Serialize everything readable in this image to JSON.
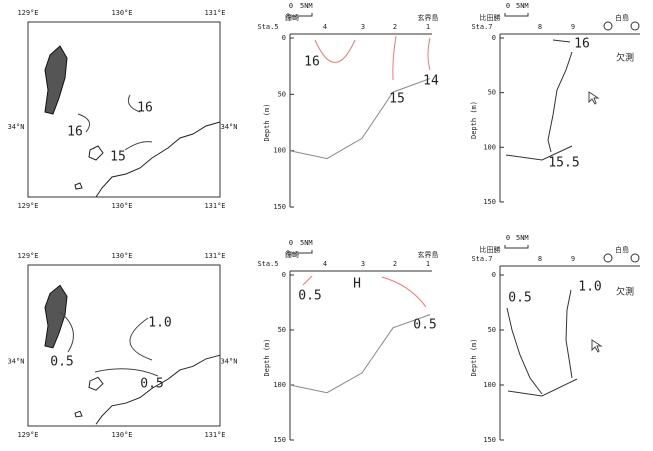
{
  "maps": [
    {
      "lon_top": [
        "129°E",
        "130°E",
        "131°E"
      ],
      "lon_bottom": [
        "129°E",
        "130°E",
        "131°E"
      ],
      "lat_left": "34°N",
      "lat_right": "34°N",
      "contours": [
        "16",
        "16",
        "15"
      ]
    },
    {
      "lon_top": [
        "129°E",
        "130°E",
        "131°E"
      ],
      "lon_bottom": [
        "129°E",
        "130°E",
        "131°E"
      ],
      "lat_left": "34°N",
      "lat_right": "34°N",
      "contours": [
        "1.0",
        "0.5",
        "0.5"
      ]
    }
  ],
  "sections_left": [
    {
      "scale": [
        "0",
        "5NM"
      ],
      "place_left": "鐘崎",
      "place_right": "玄界島",
      "station_label": "Sta.5",
      "stations": [
        "4",
        "3",
        "2",
        "1"
      ],
      "depth_label": "Depth (m)",
      "depth_ticks": [
        "0",
        "50",
        "100",
        "150"
      ],
      "contours": [
        "16",
        "15",
        "14"
      ]
    },
    {
      "scale": [
        "0",
        "5NM"
      ],
      "place_left": "鐘崎",
      "place_right": "玄界島",
      "station_label": "Sta.5",
      "stations": [
        "4",
        "3",
        "2",
        "1"
      ],
      "depth_label": "Depth (m)",
      "depth_ticks": [
        "0",
        "50",
        "100",
        "150"
      ],
      "contours": [
        "0.5",
        "H",
        "0.5"
      ]
    }
  ],
  "sections_right": [
    {
      "scale": [
        "0",
        "5NM"
      ],
      "place_left": "比田勝",
      "place_right": "白島",
      "station_label": "Sta.7",
      "stations": [
        "8",
        "9"
      ],
      "depth_label": "Depth (m)",
      "depth_ticks": [
        "0",
        "50",
        "100",
        "150"
      ],
      "note": "欠測",
      "contours": [
        "16",
        "15.5"
      ]
    },
    {
      "scale": [
        "0",
        "5NM"
      ],
      "place_left": "比田勝",
      "place_right": "白島",
      "station_label": "Sta.7",
      "stations": [
        "8",
        "9"
      ],
      "depth_label": "Depth (m)",
      "depth_ticks": [
        "0",
        "50",
        "100",
        "150"
      ],
      "note": "欠測",
      "contours": [
        "0.5",
        "1.0"
      ]
    }
  ]
}
